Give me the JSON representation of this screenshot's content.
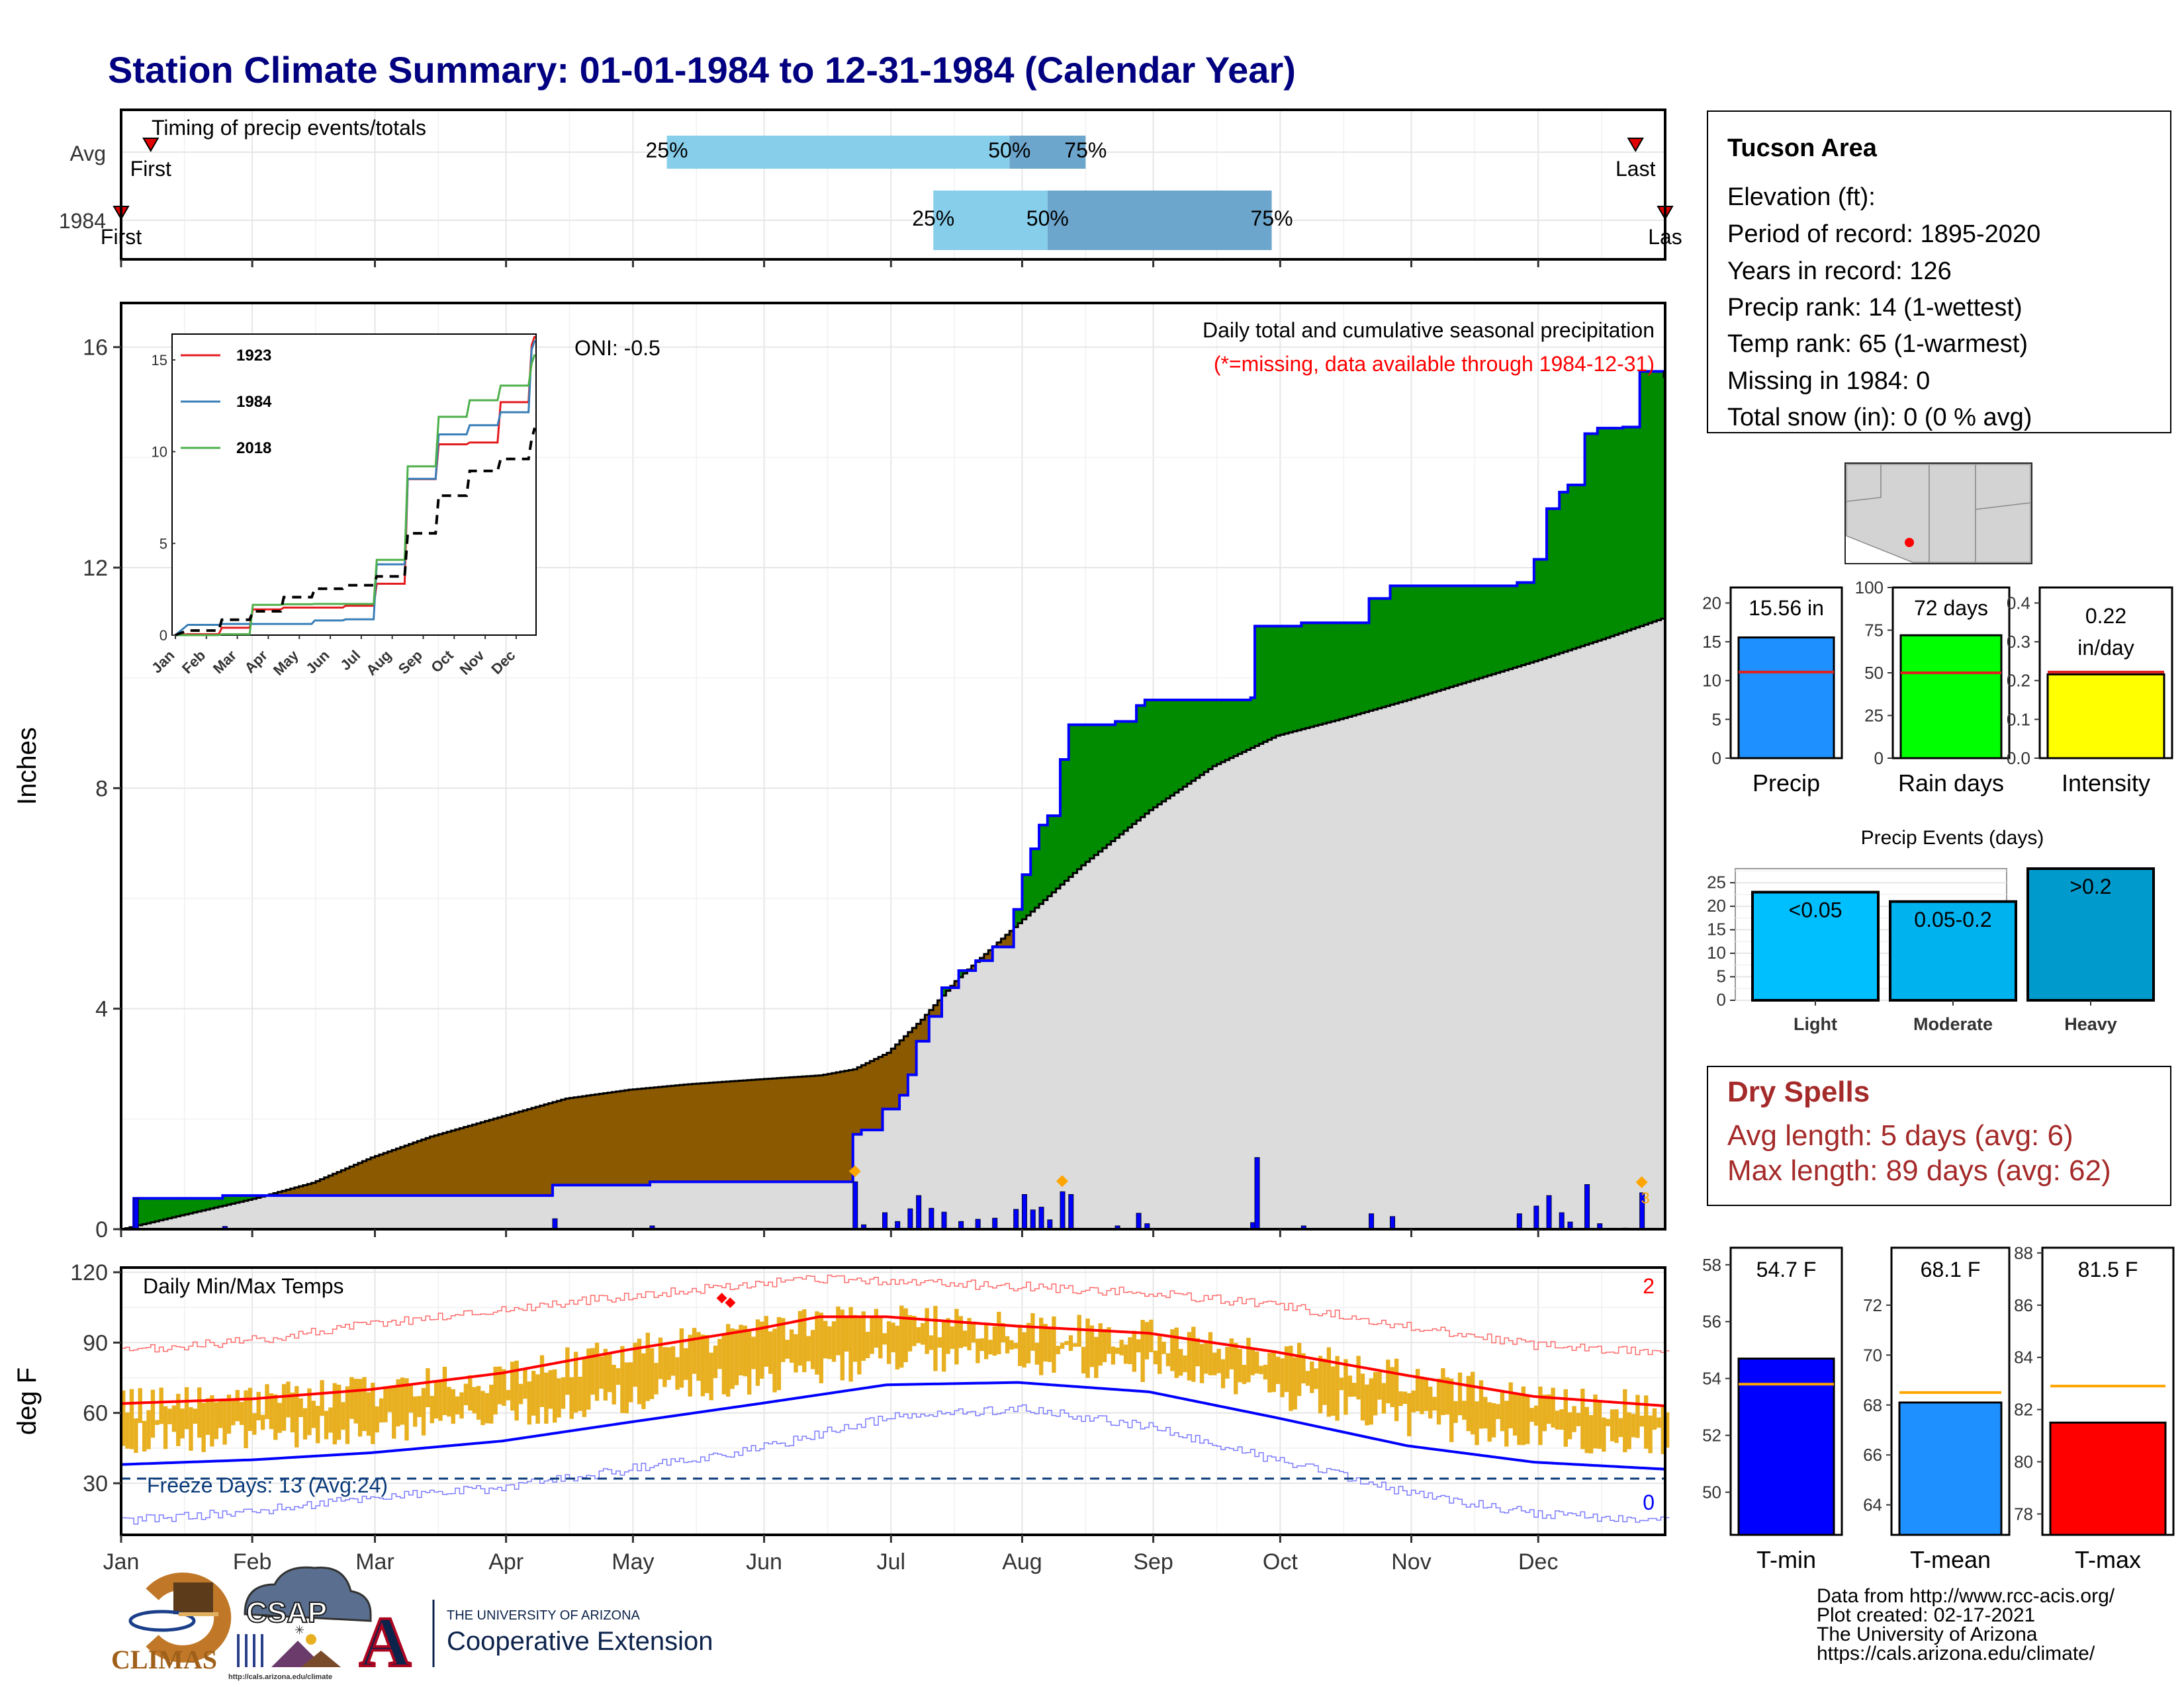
{
  "title": "Station Climate Summary: 01-01-1984 to 12-31-1984 (Calendar Year)",
  "colors": {
    "title": "#000080",
    "q_light": "#87ceeb",
    "q_dark": "#6ca6cd",
    "deficit": "#8b5a00",
    "surplus": "#008b00",
    "normal_fill": "#dcdcdc",
    "bar_blue": "#0000ff",
    "temp_bar": "#e8b020",
    "tmax_normal": "#ff0000",
    "tmin_normal": "#0000ff",
    "rain_days": "#00ff00",
    "intensity": "#ffff00",
    "precip": "#1e90ff",
    "light": "#00bfff",
    "moderate": "#00b2ee",
    "heavy": "#009acd",
    "dry_spells": "#a52a2a",
    "freeze": "#0a3a7a",
    "marker": "#ffa500"
  },
  "timing": {
    "label": "Timing of precip events/totals",
    "rows": [
      "Avg",
      "1984"
    ],
    "first_label": "First",
    "last_label": "Last",
    "last_label_clipped": "Las",
    "pct_labels": [
      "25%",
      "50%",
      "75%"
    ],
    "avg": {
      "first": "01-08",
      "q25": "05-09",
      "q50": "07-29",
      "q75": "08-16",
      "last": "12-24"
    },
    "y1984": {
      "first": "01-01",
      "q25": "07-11",
      "q50": "08-07",
      "q75": "09-29",
      "last": "12-31"
    }
  },
  "precip_panel": {
    "ylabel": "Inches",
    "oni": "ONI: -0.5",
    "title": "Daily total and cumulative seasonal precipitation",
    "note": "(*=missing, data available through 1984-12-31)",
    "yticks": [
      "0",
      "4",
      "8",
      "12",
      "16"
    ],
    "marker_label": "3"
  },
  "inset": {
    "legend": [
      "1923",
      "1984",
      "2018"
    ],
    "series_colors": [
      "#e41a1c",
      "#377eb8",
      "#4daf4a"
    ],
    "yticks": [
      "0",
      "5",
      "10",
      "15"
    ],
    "xticks": [
      "Jan",
      "Feb",
      "Mar",
      "Apr",
      "May",
      "Jun",
      "Jul",
      "Aug",
      "Sep",
      "Oct",
      "Nov",
      "Dec"
    ]
  },
  "temp_panel": {
    "ylabel": "deg F",
    "title": "Daily Min/Max Temps",
    "yticks": [
      "30",
      "60",
      "90",
      "120"
    ],
    "freeze_label": "Freeze Days: 13 (Avg:24)",
    "record_high_count": "2",
    "record_low_count": "0"
  },
  "months": [
    "Jan",
    "Feb",
    "Mar",
    "Apr",
    "May",
    "Jun",
    "Jul",
    "Aug",
    "Sep",
    "Oct",
    "Nov",
    "Dec"
  ],
  "station": {
    "name": "Tucson Area",
    "elevation": "Elevation (ft):",
    "period": "Period of record: 1895-2020",
    "years": "Years in record: 126",
    "precip_rank": "Precip rank: 14 (1-wettest)",
    "temp_rank": "Temp rank: 65 (1-warmest)",
    "missing": "Missing in 1984: 0",
    "snow": "Total snow (in): 0 (0 % avg)"
  },
  "summary_bars": [
    {
      "label": "Precip",
      "value_text": "15.56 in",
      "value": 15.56,
      "normal": 11.1,
      "ymax": 22,
      "yticks": [
        "0",
        "5",
        "10",
        "15",
        "20"
      ],
      "tickvals": [
        0,
        5,
        10,
        15,
        20
      ]
    },
    {
      "label": "Rain days",
      "value_text": "72 days",
      "value": 72,
      "normal": 50,
      "ymax": 100,
      "yticks": [
        "0",
        "25",
        "50",
        "75",
        "100"
      ],
      "tickvals": [
        0,
        25,
        50,
        75,
        100
      ]
    },
    {
      "label": "Intensity",
      "value_text_1": "0.22",
      "value_text_2": "in/day",
      "value": 0.216,
      "normal": 0.222,
      "ymax": 0.44,
      "yticks": [
        "0.0",
        "0.1",
        "0.2",
        "0.3",
        "0.4"
      ],
      "tickvals": [
        0,
        0.1,
        0.2,
        0.3,
        0.4
      ]
    }
  ],
  "events": {
    "title": "Precip Events (days)",
    "yticks": [
      "0",
      "5",
      "10",
      "15",
      "20",
      "25"
    ],
    "bars": [
      {
        "category": "Light",
        "label": "<0.05",
        "value": 23
      },
      {
        "category": "Moderate",
        "label": "0.05-0.2",
        "value": 21
      },
      {
        "category": "Heavy",
        "label": ">0.2",
        "value": 28
      }
    ]
  },
  "dry_spells": {
    "title": "Dry Spells",
    "avg": "Avg length: 5 days (avg: 6)",
    "max": "Max length: 89 days (avg: 62)"
  },
  "temp_bars": [
    {
      "label": "T-min",
      "value_text": "54.7 F",
      "value": 54.7,
      "normal": 53.8,
      "ymin": 48.5,
      "ymax": 58.6,
      "yticks": [
        "50",
        "52",
        "54",
        "56",
        "58"
      ],
      "tickvals": [
        50,
        52,
        54,
        56,
        58
      ]
    },
    {
      "label": "T-mean",
      "value_text": "68.1 F",
      "value": 68.1,
      "normal": 68.5,
      "ymin": 62.8,
      "ymax": 74.3,
      "yticks": [
        "64",
        "66",
        "68",
        "70",
        "72"
      ],
      "tickvals": [
        64,
        66,
        68,
        70,
        72
      ]
    },
    {
      "label": "T-max",
      "value_text": "81.5 F",
      "value": 81.5,
      "normal": 82.9,
      "ymin": 77.2,
      "ymax": 88.2,
      "yticks": [
        "78",
        "80",
        "82",
        "84",
        "86",
        "88"
      ],
      "tickvals": [
        78,
        80,
        82,
        84,
        86,
        88
      ]
    }
  ],
  "footer": [
    "Data from http://www.rcc-acis.org/",
    "Plot created: 02-17-2021",
    "The University of Arizona",
    "https://cals.arizona.edu/climate/"
  ],
  "logos": {
    "climas": "CLIMAS",
    "csap": "CSAP",
    "csap_url": "http://cals.arizona.edu/climate",
    "ua_small": "THE UNIVERSITY OF ARIZONA",
    "ua_big": "Cooperative Extension",
    "ua_letter": "A"
  },
  "chart_data": [
    {
      "type": "area",
      "name": "Daily total and cumulative seasonal precipitation",
      "x_unit": "day of year",
      "ylabel": "Inches",
      "ylim": [
        0,
        16.8
      ],
      "cumulative_1984": [
        [
          1,
          0
        ],
        [
          4,
          0.56
        ],
        [
          24,
          0.56
        ],
        [
          25,
          0.61
        ],
        [
          102,
          0.61
        ],
        [
          103,
          0.8
        ],
        [
          126,
          0.86
        ],
        [
          173,
          0.86
        ],
        [
          174,
          1.72
        ],
        [
          176,
          1.8
        ],
        [
          181,
          2.18
        ],
        [
          185,
          2.43
        ],
        [
          187,
          2.8
        ],
        [
          189,
          3.41
        ],
        [
          192,
          3.86
        ],
        [
          195,
          4.38
        ],
        [
          199,
          4.69
        ],
        [
          203,
          4.87
        ],
        [
          207,
          5.12
        ],
        [
          212,
          5.8
        ],
        [
          214,
          6.43
        ],
        [
          216,
          6.9
        ],
        [
          218,
          7.33
        ],
        [
          220,
          7.5
        ],
        [
          223,
          8.52
        ],
        [
          225,
          9.15
        ],
        [
          236,
          9.21
        ],
        [
          240,
          9.21
        ],
        [
          241,
          9.5
        ],
        [
          243,
          9.6
        ],
        [
          268,
          9.64
        ],
        [
          269,
          10.94
        ],
        [
          280,
          11.0
        ],
        [
          296,
          11.44
        ],
        [
          301,
          11.67
        ],
        [
          331,
          11.73
        ],
        [
          335,
          12.15
        ],
        [
          338,
          13.07
        ],
        [
          341,
          13.37
        ],
        [
          343,
          13.5
        ],
        [
          347,
          14.43
        ],
        [
          350,
          14.53
        ],
        [
          356,
          14.55
        ],
        [
          360,
          15.56
        ],
        [
          366,
          15.56
        ]
      ],
      "cumulative_normal": [
        [
          1,
          0
        ],
        [
          15,
          0.25
        ],
        [
          32,
          0.55
        ],
        [
          46,
          0.84
        ],
        [
          60,
          1.3
        ],
        [
          74,
          1.68
        ],
        [
          92,
          2.07
        ],
        [
          106,
          2.37
        ],
        [
          121,
          2.53
        ],
        [
          135,
          2.63
        ],
        [
          152,
          2.72
        ],
        [
          166,
          2.79
        ],
        [
          174,
          2.9
        ],
        [
          182,
          3.2
        ],
        [
          190,
          3.8
        ],
        [
          198,
          4.5
        ],
        [
          213,
          5.55
        ],
        [
          228,
          6.6
        ],
        [
          244,
          7.6
        ],
        [
          259,
          8.4
        ],
        [
          274,
          8.95
        ],
        [
          289,
          9.25
        ],
        [
          305,
          9.6
        ],
        [
          320,
          9.95
        ],
        [
          335,
          10.3
        ],
        [
          351,
          10.7
        ],
        [
          366,
          11.1
        ]
      ],
      "daily_bars": [
        [
          4,
          0.56
        ],
        [
          25,
          0.05
        ],
        [
          103,
          0.19
        ],
        [
          126,
          0.06
        ],
        [
          174,
          0.86
        ],
        [
          176,
          0.08
        ],
        [
          181,
          0.3
        ],
        [
          184,
          0.14
        ],
        [
          187,
          0.37
        ],
        [
          189,
          0.61
        ],
        [
          192,
          0.38
        ],
        [
          195,
          0.31
        ],
        [
          199,
          0.14
        ],
        [
          203,
          0.18
        ],
        [
          207,
          0.2
        ],
        [
          212,
          0.36
        ],
        [
          214,
          0.63
        ],
        [
          216,
          0.35
        ],
        [
          218,
          0.4
        ],
        [
          220,
          0.17
        ],
        [
          223,
          0.68
        ],
        [
          225,
          0.63
        ],
        [
          236,
          0.06
        ],
        [
          241,
          0.29
        ],
        [
          243,
          0.1
        ],
        [
          268,
          0.12
        ],
        [
          269,
          1.3
        ],
        [
          280,
          0.06
        ],
        [
          296,
          0.28
        ],
        [
          301,
          0.23
        ],
        [
          331,
          0.28
        ],
        [
          335,
          0.42
        ],
        [
          338,
          0.61
        ],
        [
          341,
          0.3
        ],
        [
          343,
          0.13
        ],
        [
          347,
          0.81
        ],
        [
          350,
          0.1
        ],
        [
          356,
          0.02
        ],
        [
          360,
          0.66
        ]
      ],
      "oni": -0.5
    },
    {
      "type": "line",
      "name": "Inset cumulative precipitation",
      "x": [
        "Jan",
        "Feb",
        "Mar",
        "Apr",
        "May",
        "Jun",
        "Jul",
        "Aug",
        "Sep",
        "Oct",
        "Nov",
        "Dec"
      ],
      "ylim": [
        0,
        16
      ],
      "series": [
        {
          "name": "1923",
          "values": [
            0.05,
            0.4,
            1.4,
            1.5,
            1.5,
            1.6,
            2.8,
            8.5,
            10.4,
            10.5,
            12.7,
            15.8
          ]
        },
        {
          "name": "1984",
          "values": [
            0.56,
            0.61,
            0.61,
            0.61,
            0.8,
            0.86,
            3.86,
            8.52,
            10.94,
            11.44,
            12.15,
            15.56
          ]
        },
        {
          "name": "2018",
          "values": [
            0.0,
            0.05,
            1.65,
            1.68,
            1.7,
            1.7,
            4.1,
            9.2,
            11.9,
            12.8,
            13.6,
            14.8
          ]
        },
        {
          "values": [
            0.25,
            0.84,
            1.3,
            2.07,
            2.53,
            2.72,
            3.2,
            5.55,
            7.6,
            8.95,
            9.6,
            10.7
          ]
        }
      ]
    },
    {
      "type": "bar",
      "name": "Daily Min/Max Temps",
      "ylabel": "deg F",
      "ylim": [
        8,
        122
      ],
      "normal_tmax": [
        [
          1,
          64
        ],
        [
          32,
          66
        ],
        [
          60,
          70
        ],
        [
          91,
          77
        ],
        [
          121,
          87
        ],
        [
          152,
          96
        ],
        [
          166,
          101
        ],
        [
          182,
          101
        ],
        [
          213,
          97
        ],
        [
          244,
          94
        ],
        [
          274,
          86
        ],
        [
          305,
          76
        ],
        [
          335,
          67
        ],
        [
          366,
          63
        ]
      ],
      "normal_tmin": [
        [
          1,
          38
        ],
        [
          32,
          40
        ],
        [
          60,
          43
        ],
        [
          91,
          48
        ],
        [
          121,
          56
        ],
        [
          152,
          64
        ],
        [
          182,
          72
        ],
        [
          213,
          73
        ],
        [
          244,
          69
        ],
        [
          274,
          58
        ],
        [
          305,
          46
        ],
        [
          335,
          39
        ],
        [
          366,
          36
        ]
      ],
      "record_high": [
        [
          1,
          86
        ],
        [
          32,
          91
        ],
        [
          60,
          98
        ],
        [
          91,
          104
        ],
        [
          121,
          110
        ],
        [
          152,
          115
        ],
        [
          166,
          117
        ],
        [
          182,
          116
        ],
        [
          213,
          114
        ],
        [
          244,
          111
        ],
        [
          274,
          106
        ],
        [
          305,
          97
        ],
        [
          335,
          89
        ],
        [
          366,
          86
        ]
      ],
      "record_low": [
        [
          1,
          14
        ],
        [
          32,
          18
        ],
        [
          60,
          24
        ],
        [
          91,
          28
        ],
        [
          121,
          36
        ],
        [
          152,
          45
        ],
        [
          182,
          58
        ],
        [
          213,
          62
        ],
        [
          244,
          54
        ],
        [
          274,
          40
        ],
        [
          305,
          26
        ],
        [
          335,
          17
        ],
        [
          366,
          14
        ]
      ],
      "freeze_line": 32,
      "freeze_days": 13,
      "freeze_days_avg": 24,
      "record_highs_set": 2,
      "record_lows_set": 0
    },
    {
      "type": "bar",
      "name": "Precip Events (days)",
      "categories": [
        "Light",
        "Moderate",
        "Heavy"
      ],
      "values": [
        23,
        21,
        28
      ],
      "ylim": [
        0,
        28
      ]
    }
  ]
}
